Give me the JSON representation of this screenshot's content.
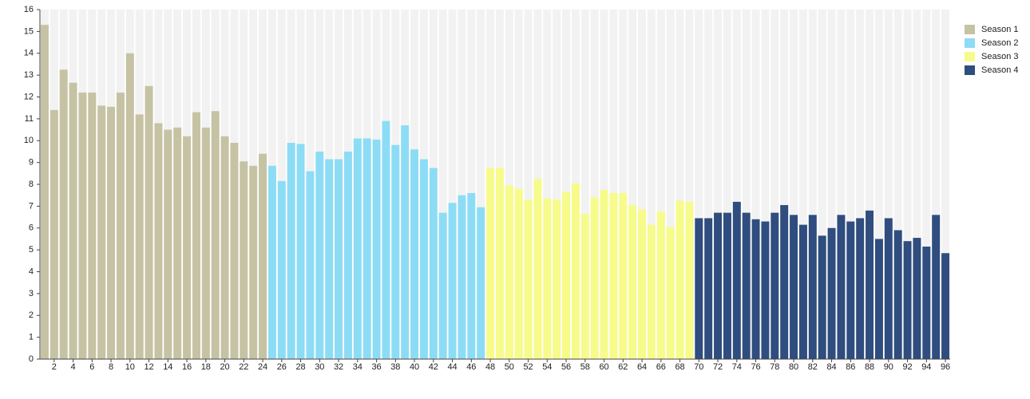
{
  "chart_data": {
    "type": "bar",
    "categories": [
      null,
      2,
      null,
      4,
      null,
      6,
      null,
      8,
      null,
      10,
      null,
      12,
      null,
      14,
      null,
      16,
      null,
      18,
      null,
      20,
      null,
      22,
      null,
      24,
      null,
      26,
      null,
      28,
      null,
      30,
      null,
      32,
      null,
      34,
      null,
      36,
      null,
      38,
      null,
      40,
      null,
      42,
      null,
      44,
      null,
      46,
      null,
      48,
      null,
      50,
      null,
      52,
      null,
      54,
      null,
      56,
      null,
      58,
      null,
      60,
      null,
      62,
      null,
      64,
      null,
      66,
      null,
      68,
      null,
      70,
      null,
      72,
      null,
      74,
      null,
      76,
      null,
      78,
      null,
      80,
      null,
      82,
      null,
      84,
      null,
      86,
      null,
      88,
      null,
      90,
      null,
      92,
      null,
      94,
      null,
      96
    ],
    "series": [
      {
        "name": "Season 1",
        "color": "#c5c3a3",
        "values": [
          15.3,
          11.4,
          13.25,
          12.65,
          12.2,
          12.2,
          11.6,
          11.55,
          12.2,
          14.0,
          11.2,
          12.5,
          10.8,
          10.5,
          10.6,
          10.2,
          11.3,
          10.6,
          11.35,
          10.2,
          9.9,
          9.05,
          8.85,
          9.4,
          null,
          null,
          null,
          null,
          null,
          null,
          null,
          null,
          null,
          null,
          null,
          null,
          null,
          null,
          null,
          null,
          null,
          null,
          null,
          null,
          null,
          null,
          null,
          null,
          null,
          null,
          null,
          null,
          null,
          null,
          null,
          null,
          null,
          null,
          null,
          null,
          null,
          null,
          null,
          null,
          null,
          null,
          null,
          null,
          null,
          null,
          null,
          null,
          null,
          null,
          null,
          null,
          null,
          null,
          null,
          null,
          null,
          null,
          null,
          null,
          null,
          null,
          null,
          null,
          null,
          null,
          null,
          null,
          null,
          null,
          null,
          null
        ]
      },
      {
        "name": "Season 2",
        "color": "#8ddcf5",
        "values": [
          null,
          null,
          null,
          null,
          null,
          null,
          null,
          null,
          null,
          null,
          null,
          null,
          null,
          null,
          null,
          null,
          null,
          null,
          null,
          null,
          null,
          null,
          null,
          null,
          8.85,
          8.15,
          9.9,
          9.85,
          8.6,
          9.5,
          9.15,
          9.15,
          9.5,
          10.1,
          10.1,
          10.05,
          10.9,
          9.8,
          10.7,
          9.6,
          9.15,
          8.75,
          6.7,
          7.15,
          7.5,
          7.6,
          6.95,
          null,
          null,
          null,
          null,
          null,
          null,
          null,
          null,
          null,
          null,
          null,
          null,
          null,
          null,
          null,
          null,
          null,
          null,
          null,
          null,
          null,
          null,
          null,
          null,
          null,
          null,
          null,
          null,
          null,
          null,
          null,
          null,
          null,
          null,
          null,
          null,
          null,
          null,
          null,
          null,
          null,
          null,
          null,
          null,
          null,
          null,
          null,
          null,
          null
        ]
      },
      {
        "name": "Season 3",
        "color": "#f7fb8a",
        "values": [
          null,
          null,
          null,
          null,
          null,
          null,
          null,
          null,
          null,
          null,
          null,
          null,
          null,
          null,
          null,
          null,
          null,
          null,
          null,
          null,
          null,
          null,
          null,
          null,
          null,
          null,
          null,
          null,
          null,
          null,
          null,
          null,
          null,
          null,
          null,
          null,
          null,
          null,
          null,
          null,
          null,
          null,
          null,
          null,
          null,
          null,
          null,
          8.75,
          8.75,
          7.95,
          7.8,
          7.3,
          8.25,
          7.35,
          7.3,
          7.65,
          8.05,
          6.65,
          7.4,
          7.75,
          7.6,
          7.6,
          7.05,
          6.85,
          6.15,
          6.75,
          6.05,
          7.25,
          7.2,
          null,
          null,
          null,
          null,
          null,
          null,
          null,
          null,
          null,
          null,
          null,
          null,
          null,
          null,
          null,
          null,
          null,
          null,
          null,
          null,
          null,
          null,
          null,
          null,
          null,
          null,
          null
        ]
      },
      {
        "name": "Season 4",
        "color": "#2f4d7e",
        "values": [
          null,
          null,
          null,
          null,
          null,
          null,
          null,
          null,
          null,
          null,
          null,
          null,
          null,
          null,
          null,
          null,
          null,
          null,
          null,
          null,
          null,
          null,
          null,
          null,
          null,
          null,
          null,
          null,
          null,
          null,
          null,
          null,
          null,
          null,
          null,
          null,
          null,
          null,
          null,
          null,
          null,
          null,
          null,
          null,
          null,
          null,
          null,
          null,
          null,
          null,
          null,
          null,
          null,
          null,
          null,
          null,
          null,
          null,
          null,
          null,
          null,
          null,
          null,
          null,
          null,
          null,
          null,
          null,
          null,
          6.45,
          6.45,
          6.7,
          6.7,
          7.2,
          6.7,
          6.4,
          6.3,
          6.7,
          7.05,
          6.6,
          6.15,
          6.6,
          5.65,
          6.0,
          6.6,
          6.3,
          6.45,
          6.8,
          5.5,
          6.45,
          5.9,
          5.4,
          5.55,
          5.15,
          6.6,
          4.85
        ]
      }
    ],
    "ylim": [
      0,
      16
    ],
    "yticks": [
      0,
      1,
      2,
      3,
      4,
      5,
      6,
      7,
      8,
      9,
      10,
      11,
      12,
      13,
      14,
      15,
      16
    ],
    "legend": "right",
    "background_stripes": true
  }
}
